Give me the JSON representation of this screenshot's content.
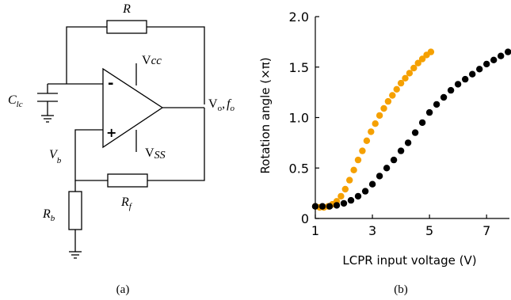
{
  "panel_a": {
    "caption": "(a)",
    "labels": {
      "R": "R",
      "Vcc": "V",
      "Vcc_sub": "cc",
      "Clc": "C",
      "Clc_sub": "lc",
      "minus": "-",
      "plus": "+",
      "Vo": "V",
      "Vo_sub": "o",
      "fo_sep": ",",
      "fo": "f",
      "fo_sub": "o",
      "Vss": "V",
      "Vss_sub": "SS",
      "Vb": "V",
      "Vb_sub": "b",
      "Rb": "R",
      "Rb_sub": "b",
      "Rf": "R",
      "Rf_sub": "f"
    }
  },
  "panel_b": {
    "caption": "(b)"
  },
  "chart_data": {
    "type": "scatter",
    "title": "",
    "xlabel": "LCPR input voltage (V)",
    "ylabel": "Rotation angle (×π)",
    "xlim": [
      1,
      7.8
    ],
    "ylim": [
      0,
      2.0
    ],
    "xticks": [
      1,
      3,
      5,
      7
    ],
    "yticks": [
      0,
      0.5,
      1.0,
      1.5,
      2.0
    ],
    "xtick_labels": [
      "1",
      "3",
      "5",
      "7"
    ],
    "ytick_labels": [
      "0",
      "0.5",
      "1.0",
      "1.5",
      "2.0"
    ],
    "grid": false,
    "legend": "none",
    "series": [
      {
        "color": "#f5a000",
        "x": [
          1.0,
          1.15,
          1.3,
          1.45,
          1.6,
          1.75,
          1.9,
          2.05,
          2.2,
          2.35,
          2.5,
          2.65,
          2.8,
          2.95,
          3.1,
          3.25,
          3.4,
          3.55,
          3.7,
          3.85,
          4.0,
          4.15,
          4.3,
          4.45,
          4.6,
          4.75,
          4.9,
          5.05
        ],
        "y": [
          0.12,
          0.11,
          0.11,
          0.12,
          0.14,
          0.17,
          0.22,
          0.29,
          0.38,
          0.48,
          0.58,
          0.67,
          0.77,
          0.86,
          0.94,
          1.02,
          1.09,
          1.16,
          1.22,
          1.28,
          1.34,
          1.39,
          1.44,
          1.49,
          1.54,
          1.58,
          1.62,
          1.65
        ]
      },
      {
        "color": "#000000",
        "x": [
          1.0,
          1.25,
          1.5,
          1.75,
          2.0,
          2.25,
          2.5,
          2.75,
          3.0,
          3.25,
          3.5,
          3.75,
          4.0,
          4.25,
          4.5,
          4.75,
          5.0,
          5.25,
          5.5,
          5.75,
          6.0,
          6.25,
          6.5,
          6.75,
          7.0,
          7.25,
          7.5,
          7.75
        ],
        "y": [
          0.12,
          0.12,
          0.12,
          0.13,
          0.15,
          0.18,
          0.22,
          0.27,
          0.34,
          0.42,
          0.5,
          0.58,
          0.67,
          0.75,
          0.85,
          0.95,
          1.05,
          1.13,
          1.2,
          1.27,
          1.33,
          1.38,
          1.43,
          1.48,
          1.53,
          1.57,
          1.61,
          1.65
        ]
      }
    ]
  }
}
